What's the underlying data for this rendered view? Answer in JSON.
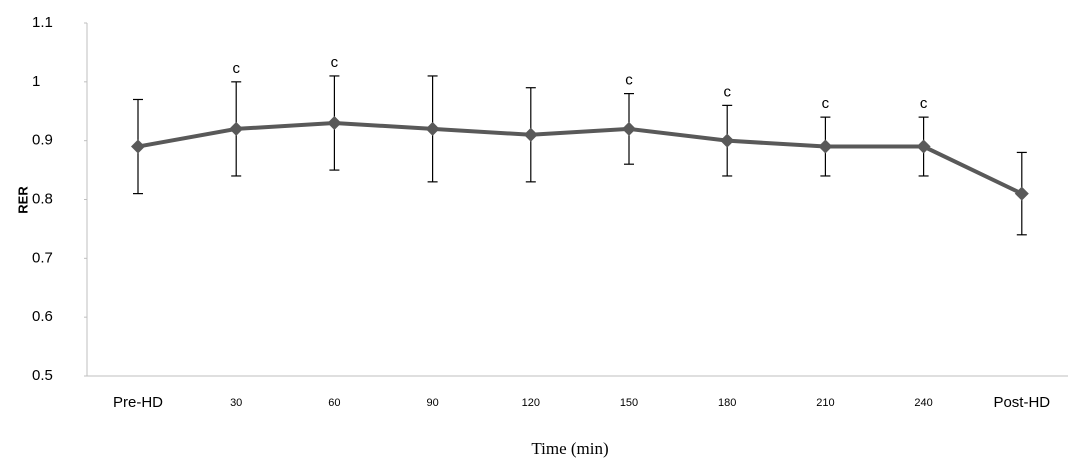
{
  "chart_data": {
    "type": "line",
    "x_label": "Time (min)",
    "y_label": "RER",
    "categories": [
      "Pre-HD",
      "30",
      "60",
      "90",
      "120",
      "150",
      "180",
      "210",
      "240",
      "Post-HD"
    ],
    "series": [
      {
        "color": "#595959",
        "values": [
          0.89,
          0.92,
          0.93,
          0.92,
          0.91,
          0.92,
          0.9,
          0.89,
          0.89,
          0.81
        ],
        "errors": [
          0.08,
          0.08,
          0.08,
          0.09,
          0.08,
          0.06,
          0.06,
          0.05,
          0.05,
          0.07
        ]
      }
    ],
    "annotations": [
      null,
      "c",
      "c",
      null,
      null,
      "c",
      "c",
      "c",
      "c",
      null
    ],
    "ylim": [
      0.5,
      1.1
    ],
    "yticks": [
      0.5,
      0.6,
      0.7,
      0.8,
      0.9,
      1,
      1.1
    ],
    "grid": false
  }
}
